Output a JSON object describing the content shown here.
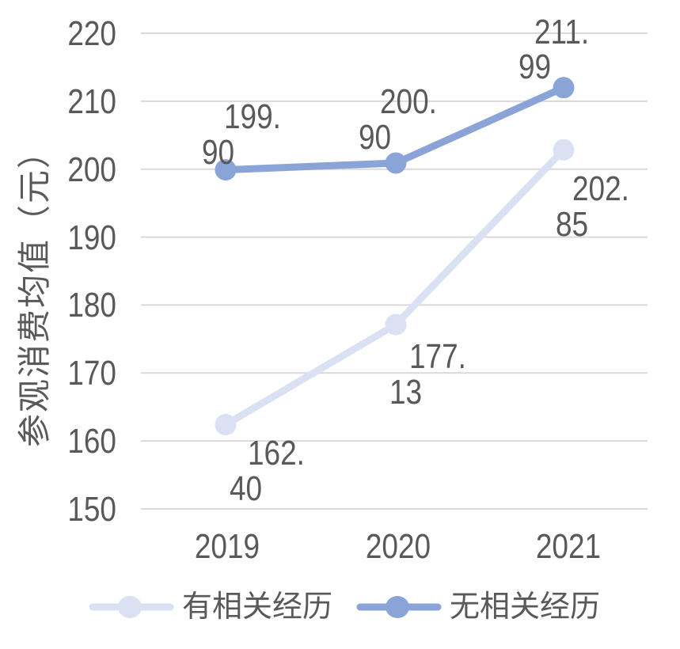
{
  "chart_data": {
    "type": "line",
    "title": "",
    "xlabel": "",
    "ylabel": "参观消费均值（元）",
    "categories": [
      "2019",
      "2020",
      "2021"
    ],
    "series": [
      {
        "name": "有相关经历",
        "values": [
          162.4,
          177.13,
          202.85
        ],
        "labels": [
          [
            "162.",
            "40"
          ],
          [
            "177.",
            "13"
          ],
          [
            "202.",
            "85"
          ]
        ],
        "color": "#d9e1f2"
      },
      {
        "name": "无相关经历",
        "values": [
          199.9,
          200.9,
          211.99
        ],
        "labels": [
          [
            "199.",
            "90"
          ],
          [
            "200.",
            "90"
          ],
          [
            "211.",
            "99"
          ]
        ],
        "color": "#8ba4d8"
      }
    ],
    "yticks": [
      150,
      160,
      170,
      180,
      190,
      200,
      210,
      220
    ],
    "ylim": [
      150,
      220
    ],
    "grid": true,
    "legend_position": "bottom"
  },
  "colors": {
    "text": "#595959",
    "gridline": "#d9d9d9",
    "background": "#ffffff",
    "series_light": "#d9e1f2",
    "series_dark": "#8ba4d8"
  }
}
